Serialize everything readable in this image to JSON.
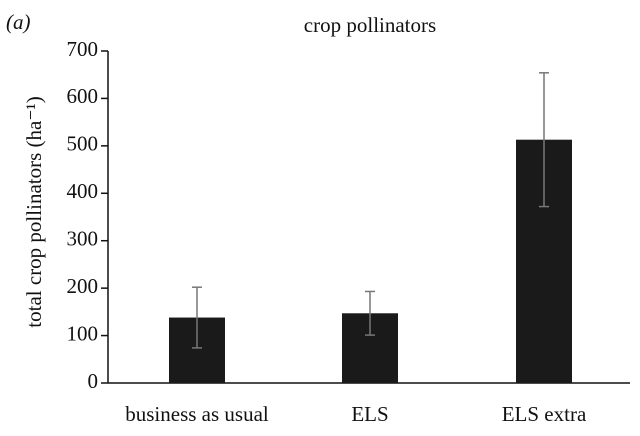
{
  "chart_data": {
    "type": "bar",
    "panel_label": "(a)",
    "title": "crop pollinators",
    "y_label": "total crop pollinators (ha⁻¹)",
    "categories": [
      "business as usual",
      "ELS",
      "ELS extra"
    ],
    "values": [
      138,
      147,
      513
    ],
    "errors": [
      64,
      46,
      141
    ],
    "color": "#1a1a1a",
    "ylim": [
      0,
      700
    ],
    "yticks": [
      0,
      100,
      200,
      300,
      400,
      500,
      600,
      700
    ],
    "grid": false
  }
}
